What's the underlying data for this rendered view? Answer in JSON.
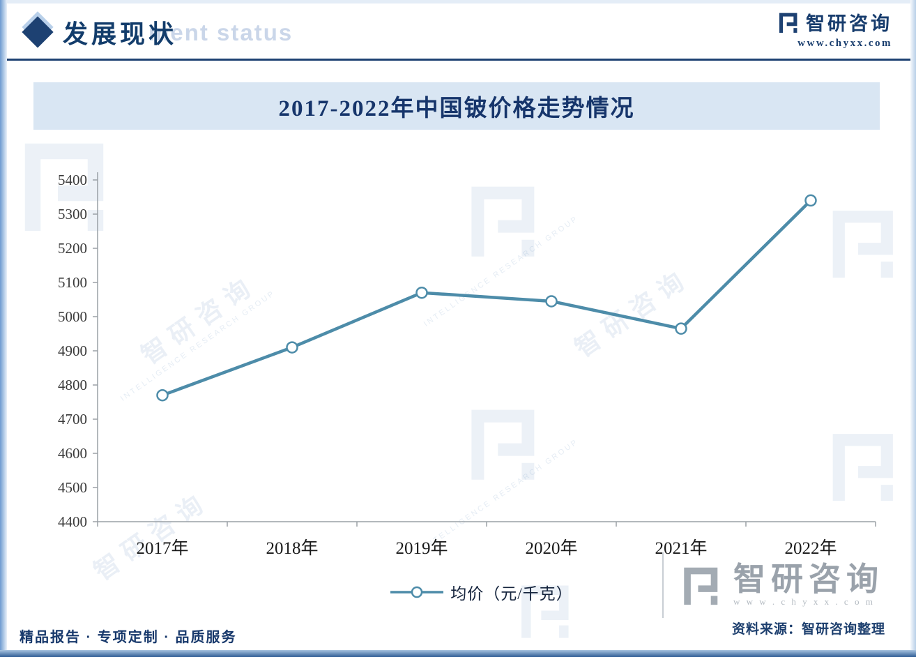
{
  "meta": {
    "accent_navy": "#1d4172",
    "banner_bg": "#d9e6f3"
  },
  "header": {
    "title": "发展现状",
    "title_en_watermark": "ment status",
    "brand": {
      "name": "智研咨询",
      "url": "www.chyxx.com"
    }
  },
  "chart_data": {
    "type": "line",
    "title": "2017-2022年中国铍价格走势情况",
    "categories": [
      "2017年",
      "2018年",
      "2019年",
      "2020年",
      "2021年",
      "2022年"
    ],
    "series": [
      {
        "name": "均价（元/千克）",
        "values": [
          4770,
          4910,
          5070,
          5045,
          4965,
          5340
        ],
        "color": "#4d8ca9"
      }
    ],
    "xlabel": "",
    "ylabel": "",
    "ylim": [
      4400,
      5400
    ],
    "ytick_step": 100,
    "grid": false,
    "legend_position": "bottom"
  },
  "source": {
    "label": "资料来源：智研咨询整理"
  },
  "watermark": {
    "brand": "智研咨询",
    "url_spaced": "w w w . c h y x x . c o m",
    "group": "INTELLIGENCE RESEARCH GROUP"
  },
  "footer": {
    "tagline": "精品报告 · 专项定制 · 品质服务"
  }
}
